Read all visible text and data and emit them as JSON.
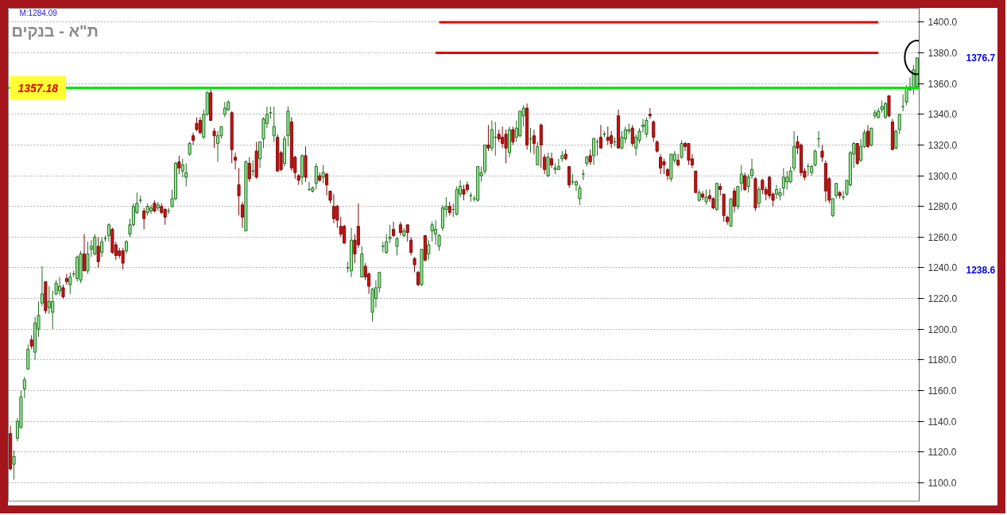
{
  "chart_data": {
    "type": "candlestick",
    "title": "ת\"א - בנקים",
    "categories": [
      null,
      null,
      null,
      null,
      null,
      null,
      null,
      null,
      null,
      null,
      null,
      null,
      null,
      null,
      null,
      null,
      null,
      null,
      null,
      null,
      null,
      null,
      null,
      null,
      null,
      null,
      null,
      null,
      null,
      null,
      null,
      null,
      null,
      null,
      null,
      null,
      null,
      null,
      null,
      null,
      null,
      null,
      null,
      null,
      null,
      null,
      null,
      null,
      null,
      null,
      null,
      null,
      null,
      null,
      null,
      null,
      null,
      null,
      null,
      null,
      null,
      null,
      null,
      null,
      null,
      null,
      null,
      null,
      null,
      null,
      null,
      null,
      null,
      null,
      null,
      null,
      null,
      null,
      null,
      null,
      null,
      null,
      null,
      null,
      null,
      null,
      null,
      null,
      null,
      null,
      null,
      null,
      null,
      null,
      null,
      null,
      null,
      null,
      null,
      null,
      null,
      null,
      null,
      null,
      null,
      null,
      null,
      null,
      null,
      null,
      null,
      null,
      null,
      null,
      null,
      null,
      null,
      null,
      null,
      null,
      null,
      null,
      null,
      null,
      null,
      null,
      null,
      null,
      null,
      null,
      null,
      null,
      null,
      null,
      null,
      null,
      null,
      null,
      null,
      null,
      null,
      null,
      null,
      null,
      null,
      null,
      null,
      null,
      null,
      null,
      null,
      null,
      null,
      null,
      null,
      null,
      null,
      null,
      null,
      null,
      null,
      null,
      null,
      null,
      null,
      null,
      null,
      null,
      null,
      null,
      null,
      null,
      null,
      null,
      null,
      null,
      null,
      null,
      null,
      null,
      null,
      null,
      null,
      null,
      null,
      null,
      null,
      null,
      null,
      null,
      null,
      null,
      null,
      null,
      null,
      null,
      null,
      null,
      null,
      null,
      null,
      null,
      null,
      null,
      null,
      null,
      null,
      null,
      null,
      null,
      null,
      null,
      null,
      null,
      null,
      null,
      null,
      null,
      null,
      null,
      null,
      null,
      null,
      null,
      null,
      null,
      null,
      null,
      null,
      null,
      null,
      null,
      null,
      null,
      null,
      null,
      null,
      null,
      null,
      null,
      null,
      null,
      null,
      null,
      null,
      null,
      null,
      null,
      null,
      null,
      null,
      null,
      null,
      null,
      null,
      null,
      null,
      null,
      null
    ],
    "ohlc": [
      [
        1132,
        1137,
        1108,
        1109
      ],
      [
        1112,
        1121,
        1102,
        1117
      ],
      [
        1129,
        1142,
        1127,
        1140
      ],
      [
        1136,
        1160,
        1135,
        1156
      ],
      [
        1161,
        1169,
        1155,
        1167
      ],
      [
        1174,
        1190,
        1174,
        1187
      ],
      [
        1193,
        1196,
        1187,
        1189
      ],
      [
        1185,
        1208,
        1180,
        1204
      ],
      [
        1200,
        1218,
        1195,
        1209
      ],
      [
        1217,
        1241,
        1215,
        1223
      ],
      [
        1231,
        1231,
        1210,
        1212
      ],
      [
        1214,
        1228,
        1210,
        1218
      ],
      [
        1211,
        1225,
        1200,
        1218
      ],
      [
        1223,
        1232,
        1222,
        1230
      ],
      [
        1225,
        1234,
        1222,
        1228
      ],
      [
        1227,
        1229,
        1220,
        1221
      ],
      [
        1233,
        1236,
        1229,
        1231
      ],
      [
        1229,
        1237,
        1223,
        1234
      ],
      [
        1236,
        1238,
        1234,
        1236
      ],
      [
        1233,
        1248,
        1231,
        1247
      ],
      [
        1232,
        1251,
        1230,
        1249
      ],
      [
        1249,
        1262,
        1238,
        1238
      ],
      [
        1238,
        1257,
        1236,
        1249
      ],
      [
        1252,
        1258,
        1247,
        1254
      ],
      [
        1249,
        1262,
        1248,
        1260
      ],
      [
        1254,
        1260,
        1240,
        1244
      ],
      [
        1250,
        1260,
        1247,
        1257
      ],
      [
        1259,
        1261,
        1257,
        1259
      ],
      [
        1261,
        1269,
        1257,
        1268
      ],
      [
        1265,
        1266,
        1249,
        1250
      ],
      [
        1255,
        1257,
        1245,
        1248
      ],
      [
        1251,
        1253,
        1246,
        1248
      ],
      [
        1251,
        1253,
        1239,
        1243
      ],
      [
        1251,
        1258,
        1249,
        1257
      ],
      [
        1262,
        1272,
        1260,
        1268
      ],
      [
        1268,
        1282,
        1267,
        1280
      ],
      [
        1276,
        1289,
        1275,
        1282
      ],
      [
        1284,
        1287,
        1282,
        1284
      ],
      [
        1277,
        1279,
        1265,
        1272
      ],
      [
        1276,
        1282,
        1274,
        1280
      ],
      [
        1277,
        1281,
        1275,
        1279
      ],
      [
        1282,
        1284,
        1276,
        1277
      ],
      [
        1279,
        1283,
        1277,
        1281
      ],
      [
        1280,
        1282,
        1275,
        1276
      ],
      [
        1278,
        1279,
        1268,
        1273
      ],
      [
        1277,
        1279,
        1275,
        1277
      ],
      [
        1280,
        1291,
        1279,
        1285
      ],
      [
        1285,
        1309,
        1284,
        1308
      ],
      [
        1309,
        1313,
        1301,
        1305
      ],
      [
        1303,
        1311,
        1299,
        1307
      ],
      [
        1299,
        1308,
        1293,
        1302
      ],
      [
        1314,
        1322,
        1313,
        1321
      ],
      [
        1326,
        1328,
        1320,
        1323
      ],
      [
        1334,
        1338,
        1329,
        1330
      ],
      [
        1336,
        1338,
        1327,
        1328
      ],
      [
        1325,
        1343,
        1324,
        1340
      ],
      [
        1340,
        1355,
        1339,
        1354
      ],
      [
        1354,
        1357,
        1336,
        1336
      ],
      [
        1329,
        1331,
        1318,
        1326
      ],
      [
        1321,
        1329,
        1309,
        1326
      ],
      [
        1326,
        1332,
        1324,
        1332
      ],
      [
        1340,
        1348,
        1338,
        1344
      ],
      [
        1343,
        1349,
        1342,
        1348
      ],
      [
        1341,
        1342,
        1308,
        1317
      ],
      [
        1312,
        1315,
        1304,
        1310
      ],
      [
        1294,
        1305,
        1274,
        1287
      ],
      [
        1281,
        1283,
        1266,
        1273
      ],
      [
        1264,
        1310,
        1264,
        1309
      ],
      [
        1308,
        1312,
        1296,
        1298
      ],
      [
        1303,
        1310,
        1300,
        1303
      ],
      [
        1316,
        1322,
        1298,
        1299
      ],
      [
        1311,
        1322,
        1305,
        1322
      ],
      [
        1324,
        1338,
        1318,
        1337
      ],
      [
        1334,
        1345,
        1331,
        1340
      ],
      [
        1341,
        1345,
        1337,
        1341
      ],
      [
        1326,
        1345,
        1322,
        1332
      ],
      [
        1325,
        1327,
        1303,
        1303
      ],
      [
        1315,
        1316,
        1303,
        1304
      ],
      [
        1308,
        1326,
        1306,
        1324
      ],
      [
        1326,
        1345,
        1319,
        1342
      ],
      [
        1335,
        1338,
        1303,
        1305
      ],
      [
        1312,
        1313,
        1298,
        1302
      ],
      [
        1300,
        1301,
        1294,
        1297
      ],
      [
        1299,
        1314,
        1294,
        1313
      ],
      [
        1313,
        1319,
        1296,
        1299
      ],
      [
        1291,
        1296,
        1290,
        1291
      ],
      [
        1290,
        1293,
        1289,
        1292
      ],
      [
        1295,
        1308,
        1291,
        1306
      ],
      [
        1300,
        1302,
        1296,
        1297
      ],
      [
        1299,
        1307,
        1295,
        1302
      ],
      [
        1301,
        1302,
        1287,
        1294
      ],
      [
        1290,
        1290,
        1282,
        1284
      ],
      [
        1280,
        1288,
        1269,
        1272
      ],
      [
        1280,
        1281,
        1266,
        1271
      ],
      [
        1267,
        1273,
        1260,
        1262
      ],
      [
        1267,
        1268,
        1256,
        1256
      ],
      [
        1240,
        1244,
        1237,
        1240
      ],
      [
        1238,
        1266,
        1234,
        1258
      ],
      [
        1258,
        1262,
        1243,
        1249
      ],
      [
        1267,
        1282,
        1253,
        1255
      ],
      [
        1234,
        1254,
        1234,
        1249
      ],
      [
        1241,
        1243,
        1232,
        1234
      ],
      [
        1236,
        1237,
        1223,
        1228
      ],
      [
        1211,
        1227,
        1205,
        1226
      ],
      [
        1220,
        1232,
        1214,
        1227
      ],
      [
        1227,
        1237,
        1224,
        1237
      ],
      [
        1254,
        1257,
        1250,
        1254
      ],
      [
        1250,
        1262,
        1249,
        1257
      ],
      [
        1259,
        1268,
        1256,
        1260
      ],
      [
        1265,
        1270,
        1260,
        1261
      ],
      [
        1254,
        1260,
        1248,
        1259
      ],
      [
        1268,
        1270,
        1261,
        1263
      ],
      [
        1261,
        1266,
        1260,
        1264
      ],
      [
        1268,
        1268,
        1257,
        1263
      ],
      [
        1258,
        1260,
        1248,
        1250
      ],
      [
        1246,
        1247,
        1237,
        1242
      ],
      [
        1237,
        1238,
        1228,
        1229
      ],
      [
        1229,
        1252,
        1228,
        1252
      ],
      [
        1261,
        1261,
        1244,
        1245
      ],
      [
        1249,
        1258,
        1245,
        1255
      ],
      [
        1264,
        1270,
        1257,
        1268
      ],
      [
        1262,
        1271,
        1255,
        1265
      ],
      [
        1254,
        1262,
        1251,
        1261
      ],
      [
        1266,
        1281,
        1264,
        1279
      ],
      [
        1278,
        1286,
        1273,
        1280
      ],
      [
        1280,
        1283,
        1274,
        1276
      ],
      [
        1278,
        1282,
        1273,
        1278
      ],
      [
        1275,
        1293,
        1274,
        1291
      ],
      [
        1288,
        1297,
        1286,
        1293
      ],
      [
        1291,
        1294,
        1284,
        1288
      ],
      [
        1294,
        1296,
        1289,
        1291
      ],
      [
        1287,
        1289,
        1283,
        1287
      ],
      [
        1285,
        1287,
        1283,
        1285
      ],
      [
        1284,
        1306,
        1283,
        1306
      ],
      [
        1300,
        1306,
        1296,
        1302
      ],
      [
        1303,
        1320,
        1301,
        1320
      ],
      [
        1320,
        1333,
        1316,
        1318
      ],
      [
        1318,
        1336,
        1316,
        1330
      ],
      [
        1325,
        1335,
        1313,
        1325
      ],
      [
        1327,
        1330,
        1322,
        1324
      ],
      [
        1325,
        1332,
        1318,
        1321
      ],
      [
        1327,
        1330,
        1308,
        1318
      ],
      [
        1315,
        1332,
        1312,
        1330
      ],
      [
        1330,
        1332,
        1320,
        1322
      ],
      [
        1325,
        1336,
        1322,
        1331
      ],
      [
        1326,
        1342,
        1325,
        1342
      ],
      [
        1339,
        1346,
        1332,
        1344
      ],
      [
        1344,
        1347,
        1317,
        1320
      ],
      [
        1324,
        1331,
        1315,
        1324
      ],
      [
        1326,
        1330,
        1314,
        1321
      ],
      [
        1307,
        1322,
        1307,
        1319
      ],
      [
        1333,
        1334,
        1305,
        1320
      ],
      [
        1312,
        1314,
        1301,
        1304
      ],
      [
        1300,
        1315,
        1299,
        1312
      ],
      [
        1311,
        1315,
        1305,
        1307
      ],
      [
        1304,
        1308,
        1301,
        1305
      ],
      [
        1304,
        1311,
        1304,
        1306
      ],
      [
        1311,
        1316,
        1309,
        1313
      ],
      [
        1314,
        1317,
        1310,
        1311
      ],
      [
        1306,
        1306,
        1292,
        1294
      ],
      [
        1296,
        1301,
        1294,
        1296
      ],
      [
        1294,
        1297,
        1290,
        1296
      ],
      [
        1285,
        1294,
        1281,
        1292
      ],
      [
        1301,
        1304,
        1297,
        1301
      ],
      [
        1308,
        1313,
        1306,
        1312
      ],
      [
        1313,
        1317,
        1307,
        1309
      ],
      [
        1313,
        1325,
        1307,
        1324
      ],
      [
        1322,
        1324,
        1313,
        1322
      ],
      [
        1325,
        1333,
        1318,
        1318
      ],
      [
        1327,
        1329,
        1325,
        1327
      ],
      [
        1325,
        1332,
        1320,
        1323
      ],
      [
        1326,
        1329,
        1318,
        1321
      ],
      [
        1322,
        1325,
        1319,
        1322
      ],
      [
        1339,
        1343,
        1318,
        1318
      ],
      [
        1318,
        1329,
        1317,
        1325
      ],
      [
        1324,
        1332,
        1321,
        1330
      ],
      [
        1329,
        1334,
        1327,
        1330
      ],
      [
        1331,
        1333,
        1319,
        1321
      ],
      [
        1318,
        1327,
        1313,
        1325
      ],
      [
        1323,
        1331,
        1321,
        1329
      ],
      [
        1332,
        1337,
        1328,
        1333
      ],
      [
        1327,
        1338,
        1325,
        1336
      ],
      [
        1340,
        1344,
        1337,
        1339
      ],
      [
        1335,
        1336,
        1322,
        1325
      ],
      [
        1322,
        1323,
        1315,
        1316
      ],
      [
        1312,
        1314,
        1301,
        1305
      ],
      [
        1309,
        1311,
        1301,
        1307
      ],
      [
        1304,
        1305,
        1297,
        1300
      ],
      [
        1298,
        1314,
        1296,
        1314
      ],
      [
        1310,
        1316,
        1308,
        1314
      ],
      [
        1310,
        1314,
        1306,
        1307
      ],
      [
        1312,
        1323,
        1311,
        1321
      ],
      [
        1321,
        1322,
        1316,
        1319
      ],
      [
        1321,
        1321,
        1307,
        1310
      ],
      [
        1311,
        1314,
        1305,
        1307
      ],
      [
        1303,
        1303,
        1289,
        1289
      ],
      [
        1284,
        1291,
        1283,
        1289
      ],
      [
        1288,
        1290,
        1284,
        1286
      ],
      [
        1283,
        1291,
        1281,
        1286
      ],
      [
        1287,
        1291,
        1283,
        1285
      ],
      [
        1285,
        1286,
        1278,
        1279
      ],
      [
        1278,
        1295,
        1277,
        1295
      ],
      [
        1293,
        1295,
        1287,
        1291
      ],
      [
        1288,
        1288,
        1270,
        1274
      ],
      [
        1273,
        1274,
        1268,
        1270
      ],
      [
        1267,
        1285,
        1267,
        1285
      ],
      [
        1290,
        1292,
        1276,
        1280
      ],
      [
        1280,
        1293,
        1278,
        1293
      ],
      [
        1295,
        1307,
        1290,
        1301
      ],
      [
        1300,
        1302,
        1290,
        1291
      ],
      [
        1293,
        1301,
        1289,
        1299
      ],
      [
        1300,
        1311,
        1298,
        1304
      ],
      [
        1298,
        1299,
        1277,
        1279
      ],
      [
        1282,
        1293,
        1279,
        1291
      ],
      [
        1297,
        1298,
        1288,
        1291
      ],
      [
        1291,
        1293,
        1284,
        1288
      ],
      [
        1299,
        1300,
        1285,
        1287
      ],
      [
        1288,
        1289,
        1280,
        1284
      ],
      [
        1288,
        1294,
        1285,
        1291
      ],
      [
        1287,
        1292,
        1284,
        1289
      ],
      [
        1292,
        1305,
        1287,
        1299
      ],
      [
        1296,
        1303,
        1291,
        1299
      ],
      [
        1296,
        1306,
        1295,
        1303
      ],
      [
        1305,
        1329,
        1303,
        1319
      ],
      [
        1322,
        1326,
        1314,
        1318
      ],
      [
        1320,
        1321,
        1300,
        1302
      ],
      [
        1303,
        1305,
        1297,
        1299
      ],
      [
        1306,
        1308,
        1300,
        1306
      ],
      [
        1302,
        1307,
        1300,
        1306
      ],
      [
        1307,
        1317,
        1306,
        1316
      ],
      [
        1324,
        1329,
        1318,
        1324
      ],
      [
        1316,
        1320,
        1309,
        1312
      ],
      [
        1308,
        1310,
        1283,
        1290
      ],
      [
        1298,
        1299,
        1282,
        1284
      ],
      [
        1274,
        1285,
        1273,
        1285
      ],
      [
        1287,
        1295,
        1285,
        1295
      ],
      [
        1289,
        1290,
        1285,
        1287
      ],
      [
        1286,
        1290,
        1284,
        1286
      ],
      [
        1288,
        1297,
        1287,
        1297
      ],
      [
        1294,
        1316,
        1293,
        1315
      ],
      [
        1314,
        1322,
        1305,
        1321
      ],
      [
        1321,
        1321,
        1307,
        1308
      ],
      [
        1310,
        1324,
        1309,
        1319
      ],
      [
        1319,
        1330,
        1318,
        1328
      ],
      [
        1329,
        1333,
        1318,
        1319
      ],
      [
        1320,
        1331,
        1319,
        1331
      ],
      [
        1339,
        1343,
        1337,
        1341
      ],
      [
        1338,
        1344,
        1337,
        1342
      ],
      [
        1343,
        1349,
        1341,
        1345
      ],
      [
        1338,
        1348,
        1337,
        1347
      ],
      [
        1352,
        1352,
        1338,
        1339
      ],
      [
        1335,
        1337,
        1317,
        1317
      ],
      [
        1318,
        1330,
        1317,
        1329
      ],
      [
        1330,
        1340,
        1327,
        1340
      ],
      [
        1345,
        1353,
        1342,
        1345
      ],
      [
        1348,
        1359,
        1346,
        1357
      ],
      [
        1356,
        1364,
        1355,
        1358
      ],
      [
        1357,
        1372,
        1353,
        1369
      ],
      [
        1358,
        1377,
        1356,
        1376.7
      ]
    ],
    "ylim": [
      1088,
      1409
    ],
    "yticks": [
      {
        "value": 1100,
        "label": "1100.0"
      },
      {
        "value": 1120,
        "label": "1120.0"
      },
      {
        "value": 1140,
        "label": "1140.0"
      },
      {
        "value": 1160,
        "label": "1160.0"
      },
      {
        "value": 1180,
        "label": "1180.0"
      },
      {
        "value": 1200,
        "label": "1200.0"
      },
      {
        "value": 1220,
        "label": "1220.0"
      },
      {
        "value": 1240,
        "label": "1240.0"
      },
      {
        "value": 1260,
        "label": "1260.0"
      },
      {
        "value": 1280,
        "label": "1280.0"
      },
      {
        "value": 1300,
        "label": "1300.0"
      },
      {
        "value": 1320,
        "label": "1320.0"
      },
      {
        "value": 1340,
        "label": "1340.0"
      },
      {
        "value": 1360,
        "label": "1360.0"
      },
      {
        "value": 1380,
        "label": "1380.0"
      },
      {
        "value": 1400,
        "label": "1400.0"
      }
    ],
    "ref_lines": [
      {
        "axis": "y",
        "value": 1357.18,
        "label": "1357.18",
        "color": "#00e600"
      }
    ],
    "series": [
      {
        "type": "line",
        "color": "#e60000",
        "values": [
          null,
          null,
          null,
          null,
          null,
          null,
          null,
          null,
          null,
          null,
          null,
          null,
          null,
          null,
          null,
          null,
          null,
          null,
          null,
          null,
          null,
          null,
          null,
          null,
          null,
          null,
          null,
          null,
          null,
          null,
          null,
          null,
          null,
          null,
          null,
          null,
          null,
          null,
          null,
          null,
          null,
          null,
          null,
          null,
          null,
          null,
          null,
          null,
          null,
          null,
          null,
          null,
          null,
          null,
          null,
          null,
          null,
          null,
          null,
          null,
          null,
          null,
          null,
          null,
          null,
          null,
          null,
          null,
          null,
          null,
          null,
          null,
          null,
          null,
          null,
          null,
          null,
          null,
          null,
          null,
          null,
          null,
          null,
          null,
          null,
          null,
          null,
          null,
          null,
          null,
          null,
          null,
          null,
          null,
          null,
          null,
          null,
          null,
          null,
          null,
          null,
          null,
          null,
          null,
          null,
          null,
          null,
          null,
          null,
          null,
          null,
          null,
          null,
          null,
          null,
          null,
          null,
          null,
          null,
          null,
          null,
          null,
          1400,
          1400,
          1400,
          1400,
          1400,
          1400,
          1400,
          1400,
          1400,
          1400,
          1400,
          1400,
          1400,
          1400,
          1400,
          1400,
          1400,
          1400,
          1400,
          1400,
          1400,
          1400,
          1400,
          1400,
          1400,
          1400,
          1400,
          1400,
          1400,
          1400,
          1400,
          1400,
          1400,
          1400,
          1400,
          1400,
          1400,
          1400,
          1400,
          1400,
          1400,
          1400,
          1400,
          1400,
          1400,
          1400,
          1400,
          1400,
          1400,
          1400,
          1400,
          1400,
          1400,
          1400,
          1400,
          1400,
          1400,
          1400,
          1400,
          1400,
          1400,
          1400,
          1400,
          1400,
          1400,
          1400,
          1400,
          1400,
          1400,
          1400,
          1400,
          1400,
          1400,
          1400,
          1400,
          1400,
          1400,
          1400,
          1400,
          1400,
          1400,
          1400,
          1400,
          1400,
          1400,
          1400,
          1400,
          1400,
          1400,
          1400,
          1400,
          1400,
          1400,
          1400,
          1400,
          1400,
          1400,
          1400,
          1400,
          1400,
          1400,
          1400,
          1400,
          1400,
          1400,
          1400,
          1400,
          1400,
          1400,
          1400,
          1400,
          1400,
          1400,
          1400,
          1400,
          1400,
          1400,
          1400,
          1400,
          1400,
          1400,
          1400,
          1400,
          1400,
          1400,
          1400,
          null,
          null,
          null,
          null,
          null,
          null,
          null,
          null,
          null,
          null,
          null
        ]
      },
      {
        "type": "line",
        "color": "#e60000",
        "values": [
          null,
          null,
          null,
          null,
          null,
          null,
          null,
          null,
          null,
          null,
          null,
          null,
          null,
          null,
          null,
          null,
          null,
          null,
          null,
          null,
          null,
          null,
          null,
          null,
          null,
          null,
          null,
          null,
          null,
          null,
          null,
          null,
          null,
          null,
          null,
          null,
          null,
          null,
          null,
          null,
          null,
          null,
          null,
          null,
          null,
          null,
          null,
          null,
          null,
          null,
          null,
          null,
          null,
          null,
          null,
          null,
          null,
          null,
          null,
          null,
          null,
          null,
          null,
          null,
          null,
          null,
          null,
          null,
          null,
          null,
          null,
          null,
          null,
          null,
          null,
          null,
          null,
          null,
          null,
          null,
          null,
          null,
          null,
          null,
          null,
          null,
          null,
          null,
          null,
          null,
          null,
          null,
          null,
          null,
          null,
          null,
          null,
          null,
          null,
          null,
          null,
          null,
          null,
          null,
          null,
          null,
          null,
          null,
          null,
          null,
          null,
          null,
          null,
          null,
          null,
          null,
          null,
          null,
          null,
          null,
          null,
          1380,
          1380,
          1380,
          1380,
          1380,
          1380,
          1380,
          1380,
          1380,
          1380,
          1380,
          1380,
          1380,
          1380,
          1380,
          1380,
          1380,
          1380,
          1380,
          1380,
          1380,
          1380,
          1380,
          1380,
          1380,
          1380,
          1380,
          1380,
          1380,
          1380,
          1380,
          1380,
          1380,
          1380,
          1380,
          1380,
          1380,
          1380,
          1380,
          1380,
          1380,
          1380,
          1380,
          1380,
          1380,
          1380,
          1380,
          1380,
          1380,
          1380,
          1380,
          1380,
          1380,
          1380,
          1380,
          1380,
          1380,
          1380,
          1380,
          1380,
          1380,
          1380,
          1380,
          1380,
          1380,
          1380,
          1380,
          1380,
          1380,
          1380,
          1380,
          1380,
          1380,
          1380,
          1380,
          1380,
          1380,
          1380,
          1380,
          1380,
          1380,
          1380,
          1380,
          1380,
          1380,
          1380,
          1380,
          1380,
          1380,
          1380,
          1380,
          1380,
          1380,
          1380,
          1380,
          1380,
          1380,
          1380,
          1380,
          1380,
          1380,
          1380,
          1380,
          1380,
          1380,
          1380,
          1380,
          1380,
          1380,
          1380,
          1380,
          1380,
          1380,
          1380,
          1380,
          1380,
          1380,
          1380,
          1380,
          1380,
          1380,
          1380,
          1380,
          1380,
          1380,
          1380,
          1380,
          null,
          null,
          null,
          null,
          null,
          null,
          null,
          null,
          null,
          null,
          null
        ]
      }
    ],
    "annotations": [
      "M:1284.09",
      "1376.7",
      "1238.6"
    ],
    "grid": "y",
    "tick_labels": "y"
  }
}
